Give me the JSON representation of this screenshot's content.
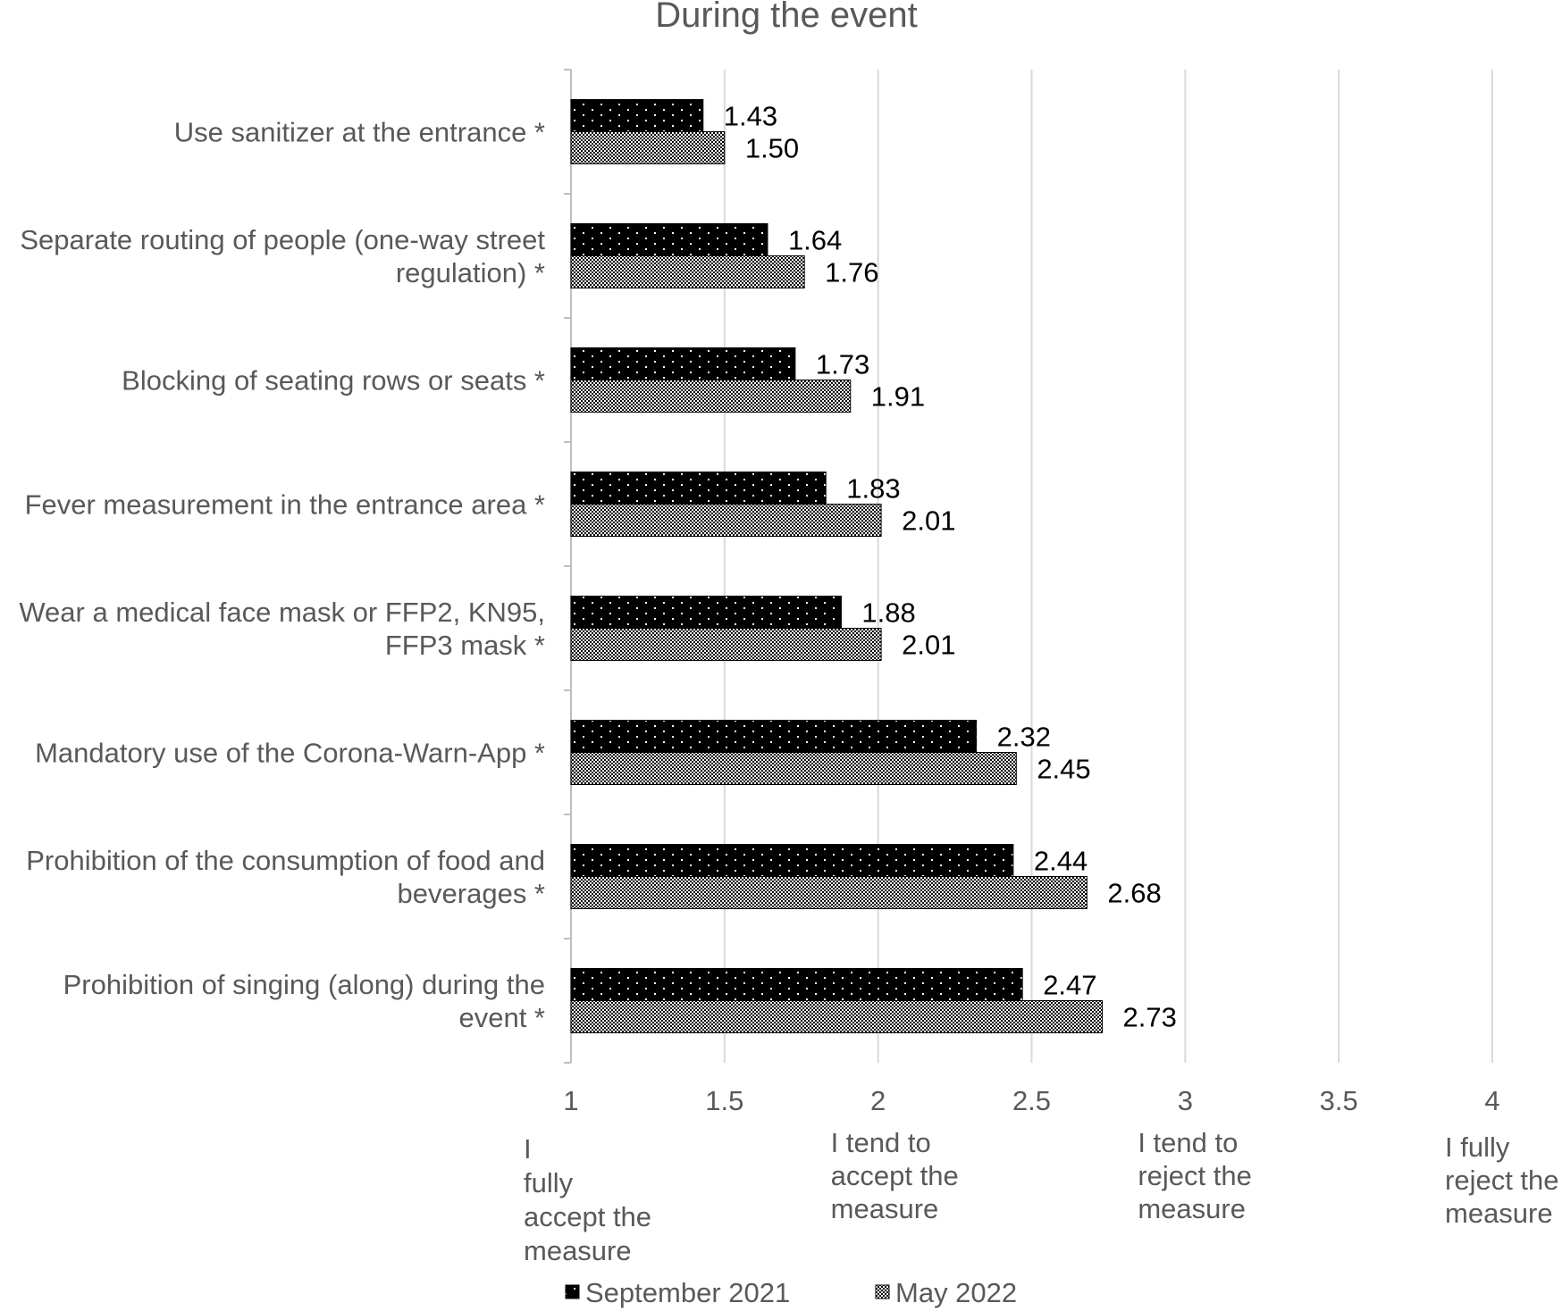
{
  "chart_data": {
    "type": "bar",
    "orientation": "horizontal",
    "title": "During the event",
    "categories": [
      [
        "Use sanitizer at the entrance *"
      ],
      [
        "Separate routing of people (one-way street",
        "regulation) *"
      ],
      [
        "Blocking of seating rows or seats *"
      ],
      [
        "Fever measurement in the entrance area *"
      ],
      [
        "Wear a medical face mask or FFP2, KN95,",
        "FFP3 mask *"
      ],
      [
        "Mandatory use of the Corona-Warn-App *"
      ],
      [
        "Prohibition of the consumption of food and",
        "beverages *"
      ],
      [
        "Prohibition of singing (along) during the",
        "event *"
      ]
    ],
    "series": [
      {
        "name": "September 2021",
        "pattern": "dots-on-black",
        "values": [
          1.43,
          1.64,
          1.73,
          1.83,
          1.88,
          2.32,
          2.44,
          2.47
        ],
        "labels": [
          "1.43",
          "1.64",
          "1.73",
          "1.83",
          "1.88",
          "2.32",
          "2.44",
          "2.47"
        ]
      },
      {
        "name": "May 2022",
        "pattern": "dense-checker",
        "values": [
          1.5,
          1.76,
          1.91,
          2.01,
          2.01,
          2.45,
          2.68,
          2.73
        ],
        "labels": [
          "1.50",
          "1.76",
          "1.91",
          "2.01",
          "2.01",
          "2.45",
          "2.68",
          "2.73"
        ]
      }
    ],
    "xlim": [
      1,
      4
    ],
    "xticks": [
      "1",
      "1.5",
      "2",
      "2.5",
      "3",
      "3.5",
      "4"
    ],
    "xtick_values": [
      1,
      1.5,
      2,
      2.5,
      3,
      3.5,
      4
    ],
    "scale_labels": [
      {
        "value": 1,
        "lines": [
          "I",
          "fully",
          "accept the",
          "measure"
        ]
      },
      {
        "value": 2,
        "lines": [
          "I tend to",
          "accept the",
          "measure"
        ]
      },
      {
        "value": 3,
        "lines": [
          "I tend to",
          "reject the",
          "measure"
        ]
      },
      {
        "value": 4,
        "lines": [
          "I fully",
          "reject the",
          "measure"
        ]
      }
    ],
    "grid": true,
    "legend_position": "bottom",
    "colors": {
      "bar": "#000000",
      "grid": "#d9d9d9",
      "text": "#595959"
    }
  }
}
